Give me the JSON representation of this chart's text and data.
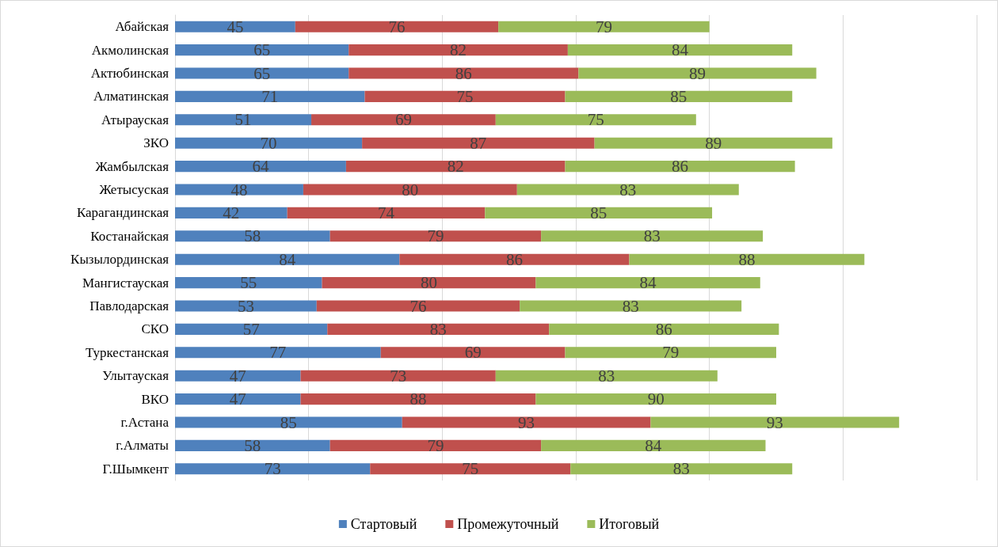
{
  "chart_data": {
    "type": "bar",
    "orientation": "horizontal",
    "stacked": true,
    "data_labels": true,
    "grid": "x",
    "legend": "bottom",
    "tick_labels": "y",
    "categories": [
      "Абайская",
      "Акмолинская",
      "Актюбинская",
      "Алматинская",
      "Атырауская",
      "ЗКО",
      "Жамбылская",
      "Жетысуская",
      "Карагандинская",
      "Костанайская",
      "Кызылординская",
      "Мангистауская",
      "Павлодарская",
      "СКО",
      "Туркестанская",
      "Улытауская",
      "ВКО",
      "г.Астана",
      "г.Алматы",
      "Г.Шымкент"
    ],
    "series": [
      {
        "name": "Стартовый",
        "color": "#4f81bd",
        "values": [
          45,
          65,
          65,
          71,
          51,
          70,
          64,
          48,
          42,
          58,
          84,
          55,
          53,
          57,
          77,
          47,
          47,
          85,
          58,
          73
        ]
      },
      {
        "name": "Промежуточный",
        "color": "#c0504d",
        "values": [
          76,
          82,
          86,
          75,
          69,
          87,
          82,
          80,
          74,
          79,
          86,
          80,
          76,
          83,
          69,
          73,
          88,
          93,
          79,
          75
        ]
      },
      {
        "name": "Итоговый",
        "color": "#9bbb59",
        "values": [
          79,
          84,
          89,
          85,
          75,
          89,
          86,
          83,
          85,
          83,
          88,
          84,
          83,
          86,
          79,
          83,
          90,
          93,
          84,
          83
        ]
      }
    ],
    "xlim": [
      0,
      300
    ],
    "xticks": [
      {
        "value": 0,
        "label": null
      },
      {
        "value": 50,
        "label": null
      },
      {
        "value": 100,
        "label": null
      },
      {
        "value": 150,
        "label": null
      },
      {
        "value": 200,
        "label": null
      },
      {
        "value": 250,
        "label": null
      },
      {
        "value": 300,
        "label": null
      }
    ]
  }
}
